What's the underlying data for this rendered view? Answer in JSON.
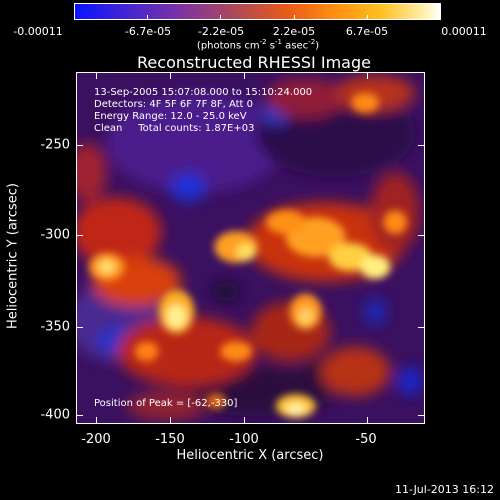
{
  "colorbar": {
    "labels": [
      "-0.00011",
      "-6.7e-05",
      "-2.2e-05",
      "2.2e-05",
      "6.7e-05",
      "0.00011"
    ],
    "units_text": "(photons cm",
    "units_exp1": "-2",
    "units_mid": " s",
    "units_exp2": "-1",
    "units_mid2": " asec",
    "units_exp3": "-2",
    "units_end": ")"
  },
  "title": "Reconstructed RHESSI Image",
  "annotations": {
    "line1": "13-Sep-2005 15:07:08.000 to 15:10:24.000",
    "line2": "Detectors: 4F 5F 6F 7F 8F, Att 0",
    "line3": "Energy Range: 12.0 - 25.0 keV",
    "line4": "Clean     Total counts: 1.87E+03",
    "peak": "Position of Peak = [-62,-330]"
  },
  "axes": {
    "xlabel": "Heliocentric X (arcsec)",
    "ylabel": "Heliocentric Y (arcsec)",
    "xticks": [
      "-200",
      "-150",
      "-100",
      "-50"
    ],
    "yticks": [
      "-250",
      "-300",
      "-350",
      "-400"
    ]
  },
  "datestamp": "11-Jul-2013 16:12"
}
